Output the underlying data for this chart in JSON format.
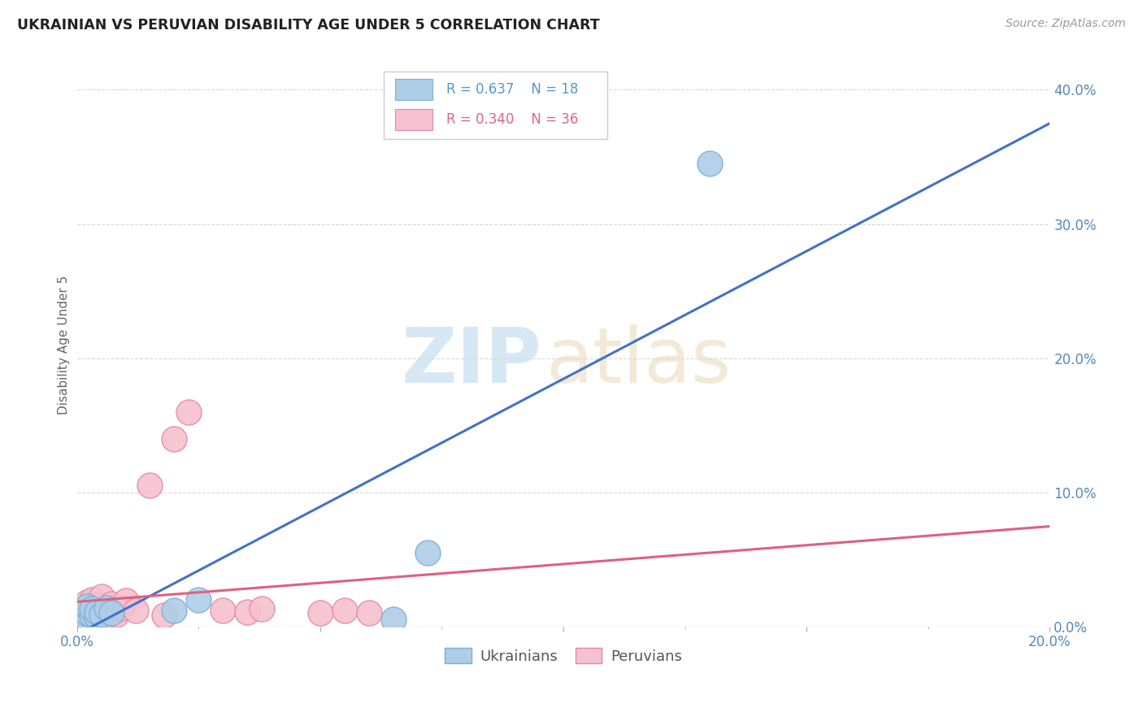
{
  "title": "UKRAINIAN VS PERUVIAN DISABILITY AGE UNDER 5 CORRELATION CHART",
  "source": "Source: ZipAtlas.com",
  "ylabel": "Disability Age Under 5",
  "xlim": [
    0.0,
    0.2
  ],
  "ylim": [
    -0.005,
    0.425
  ],
  "plot_ylim": [
    0.0,
    0.42
  ],
  "xticks": [
    0.0,
    0.05,
    0.1,
    0.15,
    0.2
  ],
  "yticks": [
    0.0,
    0.1,
    0.2,
    0.3,
    0.4
  ],
  "ukrainian_color": "#aecde8",
  "ukrainian_edge": "#7ab0d4",
  "peruvian_color": "#f5c0cf",
  "peruvian_edge": "#e8889f",
  "ukrainian_line_color": "#4472c4",
  "peruvian_line_color": "#e06080",
  "watermark_zip": "ZIP",
  "watermark_atlas": "atlas",
  "legend_r_ukr": "R = 0.637",
  "legend_n_ukr": "N = 18",
  "legend_r_per": "R = 0.340",
  "legend_n_per": "N = 36",
  "ukrainian_x": [
    0.001,
    0.001,
    0.001,
    0.002,
    0.002,
    0.002,
    0.003,
    0.003,
    0.004,
    0.004,
    0.005,
    0.006,
    0.007,
    0.02,
    0.025,
    0.065,
    0.072,
    0.13
  ],
  "ukrainian_y": [
    0.005,
    0.008,
    0.012,
    0.006,
    0.01,
    0.015,
    0.008,
    0.013,
    0.007,
    0.011,
    0.009,
    0.014,
    0.01,
    0.012,
    0.02,
    0.005,
    0.055,
    0.345
  ],
  "peruvian_x": [
    0.001,
    0.001,
    0.001,
    0.002,
    0.002,
    0.002,
    0.002,
    0.003,
    0.003,
    0.003,
    0.003,
    0.004,
    0.004,
    0.004,
    0.005,
    0.005,
    0.005,
    0.005,
    0.006,
    0.006,
    0.007,
    0.007,
    0.008,
    0.009,
    0.01,
    0.012,
    0.015,
    0.018,
    0.02,
    0.023,
    0.03,
    0.035,
    0.038,
    0.05,
    0.055,
    0.06
  ],
  "peruvian_y": [
    0.005,
    0.008,
    0.012,
    0.006,
    0.009,
    0.013,
    0.018,
    0.007,
    0.01,
    0.014,
    0.02,
    0.006,
    0.011,
    0.016,
    0.005,
    0.01,
    0.015,
    0.022,
    0.008,
    0.013,
    0.011,
    0.017,
    0.009,
    0.014,
    0.019,
    0.012,
    0.105,
    0.008,
    0.14,
    0.16,
    0.012,
    0.011,
    0.013,
    0.01,
    0.012,
    0.01
  ],
  "background_color": "#ffffff",
  "grid_color": "#d8d8d8"
}
